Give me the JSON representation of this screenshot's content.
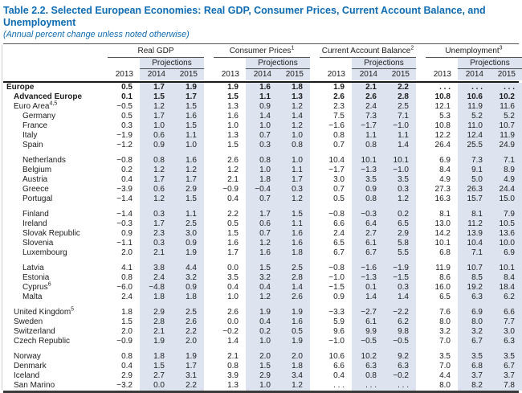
{
  "title": "Table 2.2. Selected European Economies: Real GDP, Consumer Prices, Current Account Balance, and Unemployment",
  "subtitle": "(Annual percent change unless noted otherwise)",
  "colors": {
    "accent_blue": "#0e6cb3",
    "projection_band": "#dde4ef",
    "rule_dark": "#1a1a1a"
  },
  "table": {
    "projections_label": "Projections",
    "years": [
      "2013",
      "2014",
      "2015"
    ],
    "groups": [
      {
        "label": "Real GDP",
        "sup": ""
      },
      {
        "label": "Consumer Prices",
        "sup": "1"
      },
      {
        "label": "Current Account Balance",
        "sup": "2"
      },
      {
        "label": "Unemployment",
        "sup": "3"
      }
    ],
    "rows": [
      {
        "name": "Europe",
        "sup": "",
        "indent": 0,
        "bold": true,
        "gap": false,
        "values": [
          "0.5",
          "1.7",
          "1.9",
          "1.9",
          "1.6",
          "1.8",
          "1.9",
          "2.1",
          "2.2",
          ". . .",
          ". . .",
          ". . ."
        ]
      },
      {
        "name": "Advanced Europe",
        "sup": "",
        "indent": 1,
        "bold": true,
        "gap": false,
        "values": [
          "0.1",
          "1.5",
          "1.7",
          "1.5",
          "1.1",
          "1.3",
          "2.6",
          "2.6",
          "2.8",
          "10.8",
          "10.6",
          "10.2"
        ]
      },
      {
        "name": "Euro Area",
        "sup": "4,5",
        "indent": 1,
        "bold": false,
        "gap": false,
        "values": [
          "−0.5",
          "1.2",
          "1.5",
          "1.3",
          "0.9",
          "1.2",
          "2.3",
          "2.4",
          "2.5",
          "12.1",
          "11.9",
          "11.6"
        ]
      },
      {
        "name": "Germany",
        "sup": "",
        "indent": 2,
        "bold": false,
        "gap": false,
        "values": [
          "0.5",
          "1.7",
          "1.6",
          "1.6",
          "1.4",
          "1.4",
          "7.5",
          "7.3",
          "7.1",
          "5.3",
          "5.2",
          "5.2"
        ]
      },
      {
        "name": "France",
        "sup": "",
        "indent": 2,
        "bold": false,
        "gap": false,
        "values": [
          "0.3",
          "1.0",
          "1.5",
          "1.0",
          "1.0",
          "1.2",
          "−1.6",
          "−1.7",
          "−1.0",
          "10.8",
          "11.0",
          "10.7"
        ]
      },
      {
        "name": "Italy",
        "sup": "",
        "indent": 2,
        "bold": false,
        "gap": false,
        "values": [
          "−1.9",
          "0.6",
          "1.1",
          "1.3",
          "0.7",
          "1.0",
          "0.8",
          "1.1",
          "1.1",
          "12.2",
          "12.4",
          "11.9"
        ]
      },
      {
        "name": "Spain",
        "sup": "",
        "indent": 2,
        "bold": false,
        "gap": false,
        "values": [
          "−1.2",
          "0.9",
          "1.0",
          "1.5",
          "0.3",
          "0.8",
          "0.7",
          "0.8",
          "1.4",
          "26.4",
          "25.5",
          "24.9"
        ]
      },
      {
        "name": "Netherlands",
        "sup": "",
        "indent": 2,
        "bold": false,
        "gap": true,
        "values": [
          "−0.8",
          "0.8",
          "1.6",
          "2.6",
          "0.8",
          "1.0",
          "10.4",
          "10.1",
          "10.1",
          "6.9",
          "7.3",
          "7.1"
        ]
      },
      {
        "name": "Belgium",
        "sup": "",
        "indent": 2,
        "bold": false,
        "gap": false,
        "values": [
          "0.2",
          "1.2",
          "1.2",
          "1.2",
          "1.0",
          "1.1",
          "−1.7",
          "−1.3",
          "−1.0",
          "8.4",
          "9.1",
          "8.9"
        ]
      },
      {
        "name": "Austria",
        "sup": "",
        "indent": 2,
        "bold": false,
        "gap": false,
        "values": [
          "0.4",
          "1.7",
          "1.7",
          "2.1",
          "1.8",
          "1.7",
          "3.0",
          "3.5",
          "3.5",
          "4.9",
          "5.0",
          "4.9"
        ]
      },
      {
        "name": "Greece",
        "sup": "",
        "indent": 2,
        "bold": false,
        "gap": false,
        "values": [
          "−3.9",
          "0.6",
          "2.9",
          "−0.9",
          "−0.4",
          "0.3",
          "0.7",
          "0.9",
          "0.3",
          "27.3",
          "26.3",
          "24.4"
        ]
      },
      {
        "name": "Portugal",
        "sup": "",
        "indent": 2,
        "bold": false,
        "gap": false,
        "values": [
          "−1.4",
          "1.2",
          "1.5",
          "0.4",
          "0.7",
          "1.2",
          "0.5",
          "0.8",
          "1.2",
          "16.3",
          "15.7",
          "15.0"
        ]
      },
      {
        "name": "Finland",
        "sup": "",
        "indent": 2,
        "bold": false,
        "gap": true,
        "values": [
          "−1.4",
          "0.3",
          "1.1",
          "2.2",
          "1.7",
          "1.5",
          "−0.8",
          "−0.3",
          "0.2",
          "8.1",
          "8.1",
          "7.9"
        ]
      },
      {
        "name": "Ireland",
        "sup": "",
        "indent": 2,
        "bold": false,
        "gap": false,
        "values": [
          "−0.3",
          "1.7",
          "2.5",
          "0.5",
          "0.6",
          "1.1",
          "6.6",
          "6.4",
          "6.5",
          "13.0",
          "11.2",
          "10.5"
        ]
      },
      {
        "name": "Slovak Republic",
        "sup": "",
        "indent": 2,
        "bold": false,
        "gap": false,
        "values": [
          "0.9",
          "2.3",
          "3.0",
          "1.5",
          "0.7",
          "1.6",
          "2.4",
          "2.7",
          "2.9",
          "14.2",
          "13.9",
          "13.6"
        ]
      },
      {
        "name": "Slovenia",
        "sup": "",
        "indent": 2,
        "bold": false,
        "gap": false,
        "values": [
          "−1.1",
          "0.3",
          "0.9",
          "1.6",
          "1.2",
          "1.6",
          "6.5",
          "6.1",
          "5.8",
          "10.1",
          "10.4",
          "10.0"
        ]
      },
      {
        "name": "Luxembourg",
        "sup": "",
        "indent": 2,
        "bold": false,
        "gap": false,
        "values": [
          "2.0",
          "2.1",
          "1.9",
          "1.7",
          "1.6",
          "1.8",
          "6.7",
          "6.7",
          "5.5",
          "6.8",
          "7.1",
          "6.9"
        ]
      },
      {
        "name": "Latvia",
        "sup": "",
        "indent": 2,
        "bold": false,
        "gap": true,
        "values": [
          "4.1",
          "3.8",
          "4.4",
          "0.0",
          "1.5",
          "2.5",
          "−0.8",
          "−1.6",
          "−1.9",
          "11.9",
          "10.7",
          "10.1"
        ]
      },
      {
        "name": "Estonia",
        "sup": "",
        "indent": 2,
        "bold": false,
        "gap": false,
        "values": [
          "0.8",
          "2.4",
          "3.2",
          "3.5",
          "3.2",
          "2.8",
          "−1.0",
          "−1.3",
          "−1.5",
          "8.6",
          "8.5",
          "8.4"
        ]
      },
      {
        "name": "Cyprus",
        "sup": "6",
        "indent": 2,
        "bold": false,
        "gap": false,
        "values": [
          "−6.0",
          "−4.8",
          "0.9",
          "0.4",
          "0.4",
          "1.4",
          "−1.5",
          "0.1",
          "0.3",
          "16.0",
          "19.2",
          "18.4"
        ]
      },
      {
        "name": "Malta",
        "sup": "",
        "indent": 2,
        "bold": false,
        "gap": false,
        "values": [
          "2.4",
          "1.8",
          "1.8",
          "1.0",
          "1.2",
          "2.6",
          "0.9",
          "1.4",
          "1.4",
          "6.5",
          "6.3",
          "6.2"
        ]
      },
      {
        "name": "United Kingdom",
        "sup": "5",
        "indent": 1,
        "bold": false,
        "gap": true,
        "values": [
          "1.8",
          "2.9",
          "2.5",
          "2.6",
          "1.9",
          "1.9",
          "−3.3",
          "−2.7",
          "−2.2",
          "7.6",
          "6.9",
          "6.6"
        ]
      },
      {
        "name": "Sweden",
        "sup": "",
        "indent": 1,
        "bold": false,
        "gap": false,
        "values": [
          "1.5",
          "2.8",
          "2.6",
          "0.0",
          "0.4",
          "1.6",
          "5.9",
          "6.1",
          "6.2",
          "8.0",
          "8.0",
          "7.7"
        ]
      },
      {
        "name": "Switzerland",
        "sup": "",
        "indent": 1,
        "bold": false,
        "gap": false,
        "values": [
          "2.0",
          "2.1",
          "2.2",
          "−0.2",
          "0.2",
          "0.5",
          "9.6",
          "9.9",
          "9.8",
          "3.2",
          "3.2",
          "3.0"
        ]
      },
      {
        "name": "Czech Republic",
        "sup": "",
        "indent": 1,
        "bold": false,
        "gap": false,
        "values": [
          "−0.9",
          "1.9",
          "2.0",
          "1.4",
          "1.0",
          "1.9",
          "−1.0",
          "−0.5",
          "−0.5",
          "7.0",
          "6.7",
          "6.3"
        ]
      },
      {
        "name": "Norway",
        "sup": "",
        "indent": 1,
        "bold": false,
        "gap": true,
        "values": [
          "0.8",
          "1.8",
          "1.9",
          "2.1",
          "2.0",
          "2.0",
          "10.6",
          "10.2",
          "9.2",
          "3.5",
          "3.5",
          "3.5"
        ]
      },
      {
        "name": "Denmark",
        "sup": "",
        "indent": 1,
        "bold": false,
        "gap": false,
        "values": [
          "0.4",
          "1.5",
          "1.7",
          "0.8",
          "1.5",
          "1.8",
          "6.6",
          "6.3",
          "6.3",
          "7.0",
          "6.8",
          "6.7"
        ]
      },
      {
        "name": "Iceland",
        "sup": "",
        "indent": 1,
        "bold": false,
        "gap": false,
        "values": [
          "2.9",
          "2.7",
          "3.1",
          "3.9",
          "2.9",
          "3.4",
          "0.4",
          "0.8",
          "−0.2",
          "4.4",
          "3.7",
          "3.7"
        ]
      },
      {
        "name": "San Marino",
        "sup": "",
        "indent": 1,
        "bold": false,
        "gap": false,
        "values": [
          "−3.2",
          "0.0",
          "2.2",
          "1.3",
          "1.0",
          "1.2",
          ". . .",
          ". . .",
          ". . .",
          "8.0",
          "8.2",
          "7.8"
        ]
      }
    ]
  }
}
